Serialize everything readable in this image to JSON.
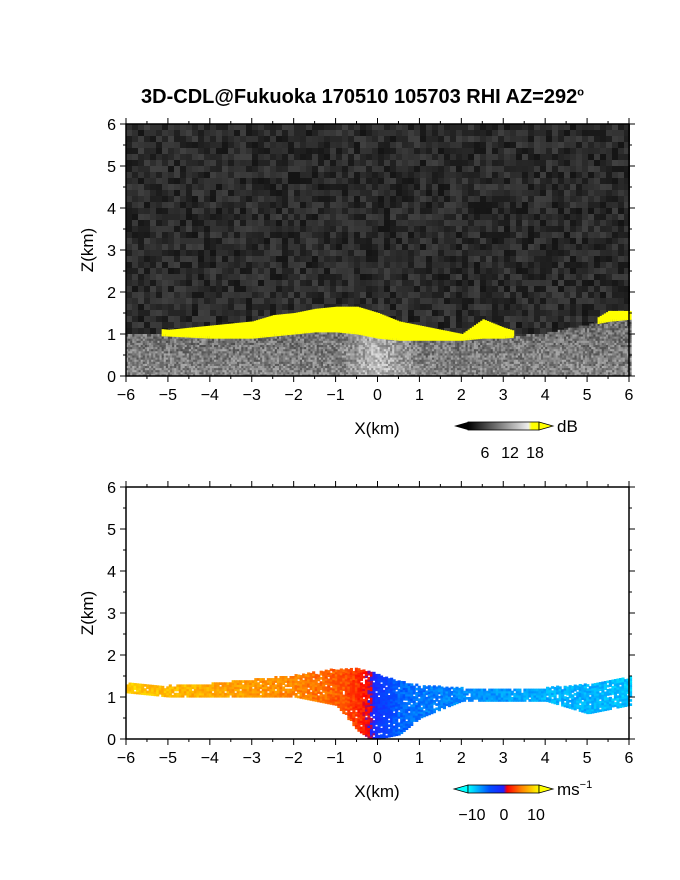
{
  "title": {
    "prefix": "3D-CDL@Fukuoka 170510 105703 RHI AZ=292",
    "degree_mark": "o"
  },
  "chart_data": [
    {
      "type": "heatmap",
      "name": "backscatter-intensity",
      "xlabel": "X(km)",
      "ylabel": "Z(km)",
      "xlim": [
        -6,
        6
      ],
      "ylim": [
        0,
        6
      ],
      "xticks": [
        "−6",
        "−5",
        "−4",
        "−3",
        "−2",
        "−1",
        "0",
        "1",
        "2",
        "3",
        "4",
        "5",
        "6"
      ],
      "yticks": [
        "0",
        "1",
        "2",
        "3",
        "4",
        "5",
        "6"
      ],
      "background": "noise (dark gray)",
      "colorbar": {
        "unit": "dB",
        "ticks": [
          "6",
          "12",
          "18"
        ],
        "range": [
          0,
          20
        ],
        "colors": [
          "#000000",
          "#ffffff",
          "#ffff00"
        ]
      },
      "layer_top_km": {
        "x": [
          -6,
          -5,
          -4,
          -3,
          -2.5,
          -2,
          -1.5,
          -1,
          -0.5,
          0,
          0.5,
          1,
          1.5,
          2,
          2.5,
          3,
          3.5,
          4,
          4.5,
          5,
          5.5,
          6
        ],
        "z": [
          1.2,
          1.1,
          1.2,
          1.3,
          1.45,
          1.5,
          1.6,
          1.65,
          1.65,
          1.5,
          1.3,
          1.2,
          1.1,
          1.0,
          1.35,
          1.15,
          1.0,
          1.1,
          1.15,
          1.25,
          1.55,
          1.55
        ]
      },
      "saturated_band_bottom_km": [
        1.0,
        0.95,
        0.9,
        0.9,
        0.95,
        1.0,
        1.05,
        1.05,
        1.0,
        0.9,
        0.85,
        0.85,
        0.85,
        0.85,
        0.9,
        0.9,
        0.95,
        1.0,
        1.1,
        1.2,
        1.3,
        1.35
      ]
    },
    {
      "type": "heatmap",
      "name": "radial-velocity",
      "xlabel": "X(km)",
      "ylabel": "Z(km)",
      "xlim": [
        -6,
        6
      ],
      "ylim": [
        0,
        6
      ],
      "xticks": [
        "−6",
        "−5",
        "−4",
        "−3",
        "−2",
        "−1",
        "0",
        "1",
        "2",
        "3",
        "4",
        "5",
        "6"
      ],
      "yticks": [
        "0",
        "1",
        "2",
        "3",
        "4",
        "5",
        "6"
      ],
      "colorbar": {
        "unit": "ms",
        "unit_exp": "−1",
        "ticks": [
          "−10",
          "0",
          "10"
        ],
        "range": [
          -15,
          15
        ],
        "colors": [
          "#00ffff",
          "#0000ff",
          "#ff0000",
          "#ffff00"
        ]
      },
      "velocity_ms": {
        "x": [
          -6,
          -5,
          -4,
          -3,
          -2,
          -1,
          -0.5,
          -0.2,
          0,
          0.5,
          1,
          2,
          3,
          4,
          5,
          6
        ],
        "v": [
          12,
          11,
          10,
          9,
          8,
          6,
          4,
          1,
          -3,
          -7,
          -8,
          -9,
          -10,
          -11,
          -11,
          -12
        ]
      },
      "echo_bottom_km": [
        1.1,
        1.0,
        1.0,
        1.0,
        1.0,
        0.8,
        0.2,
        0.0,
        0.0,
        0.1,
        0.5,
        0.9,
        0.9,
        0.9,
        0.6,
        0.8
      ],
      "echo_top_km": [
        1.3,
        1.25,
        1.3,
        1.4,
        1.5,
        1.65,
        1.65,
        1.6,
        1.5,
        1.35,
        1.25,
        1.2,
        1.15,
        1.2,
        1.3,
        1.5
      ]
    }
  ]
}
